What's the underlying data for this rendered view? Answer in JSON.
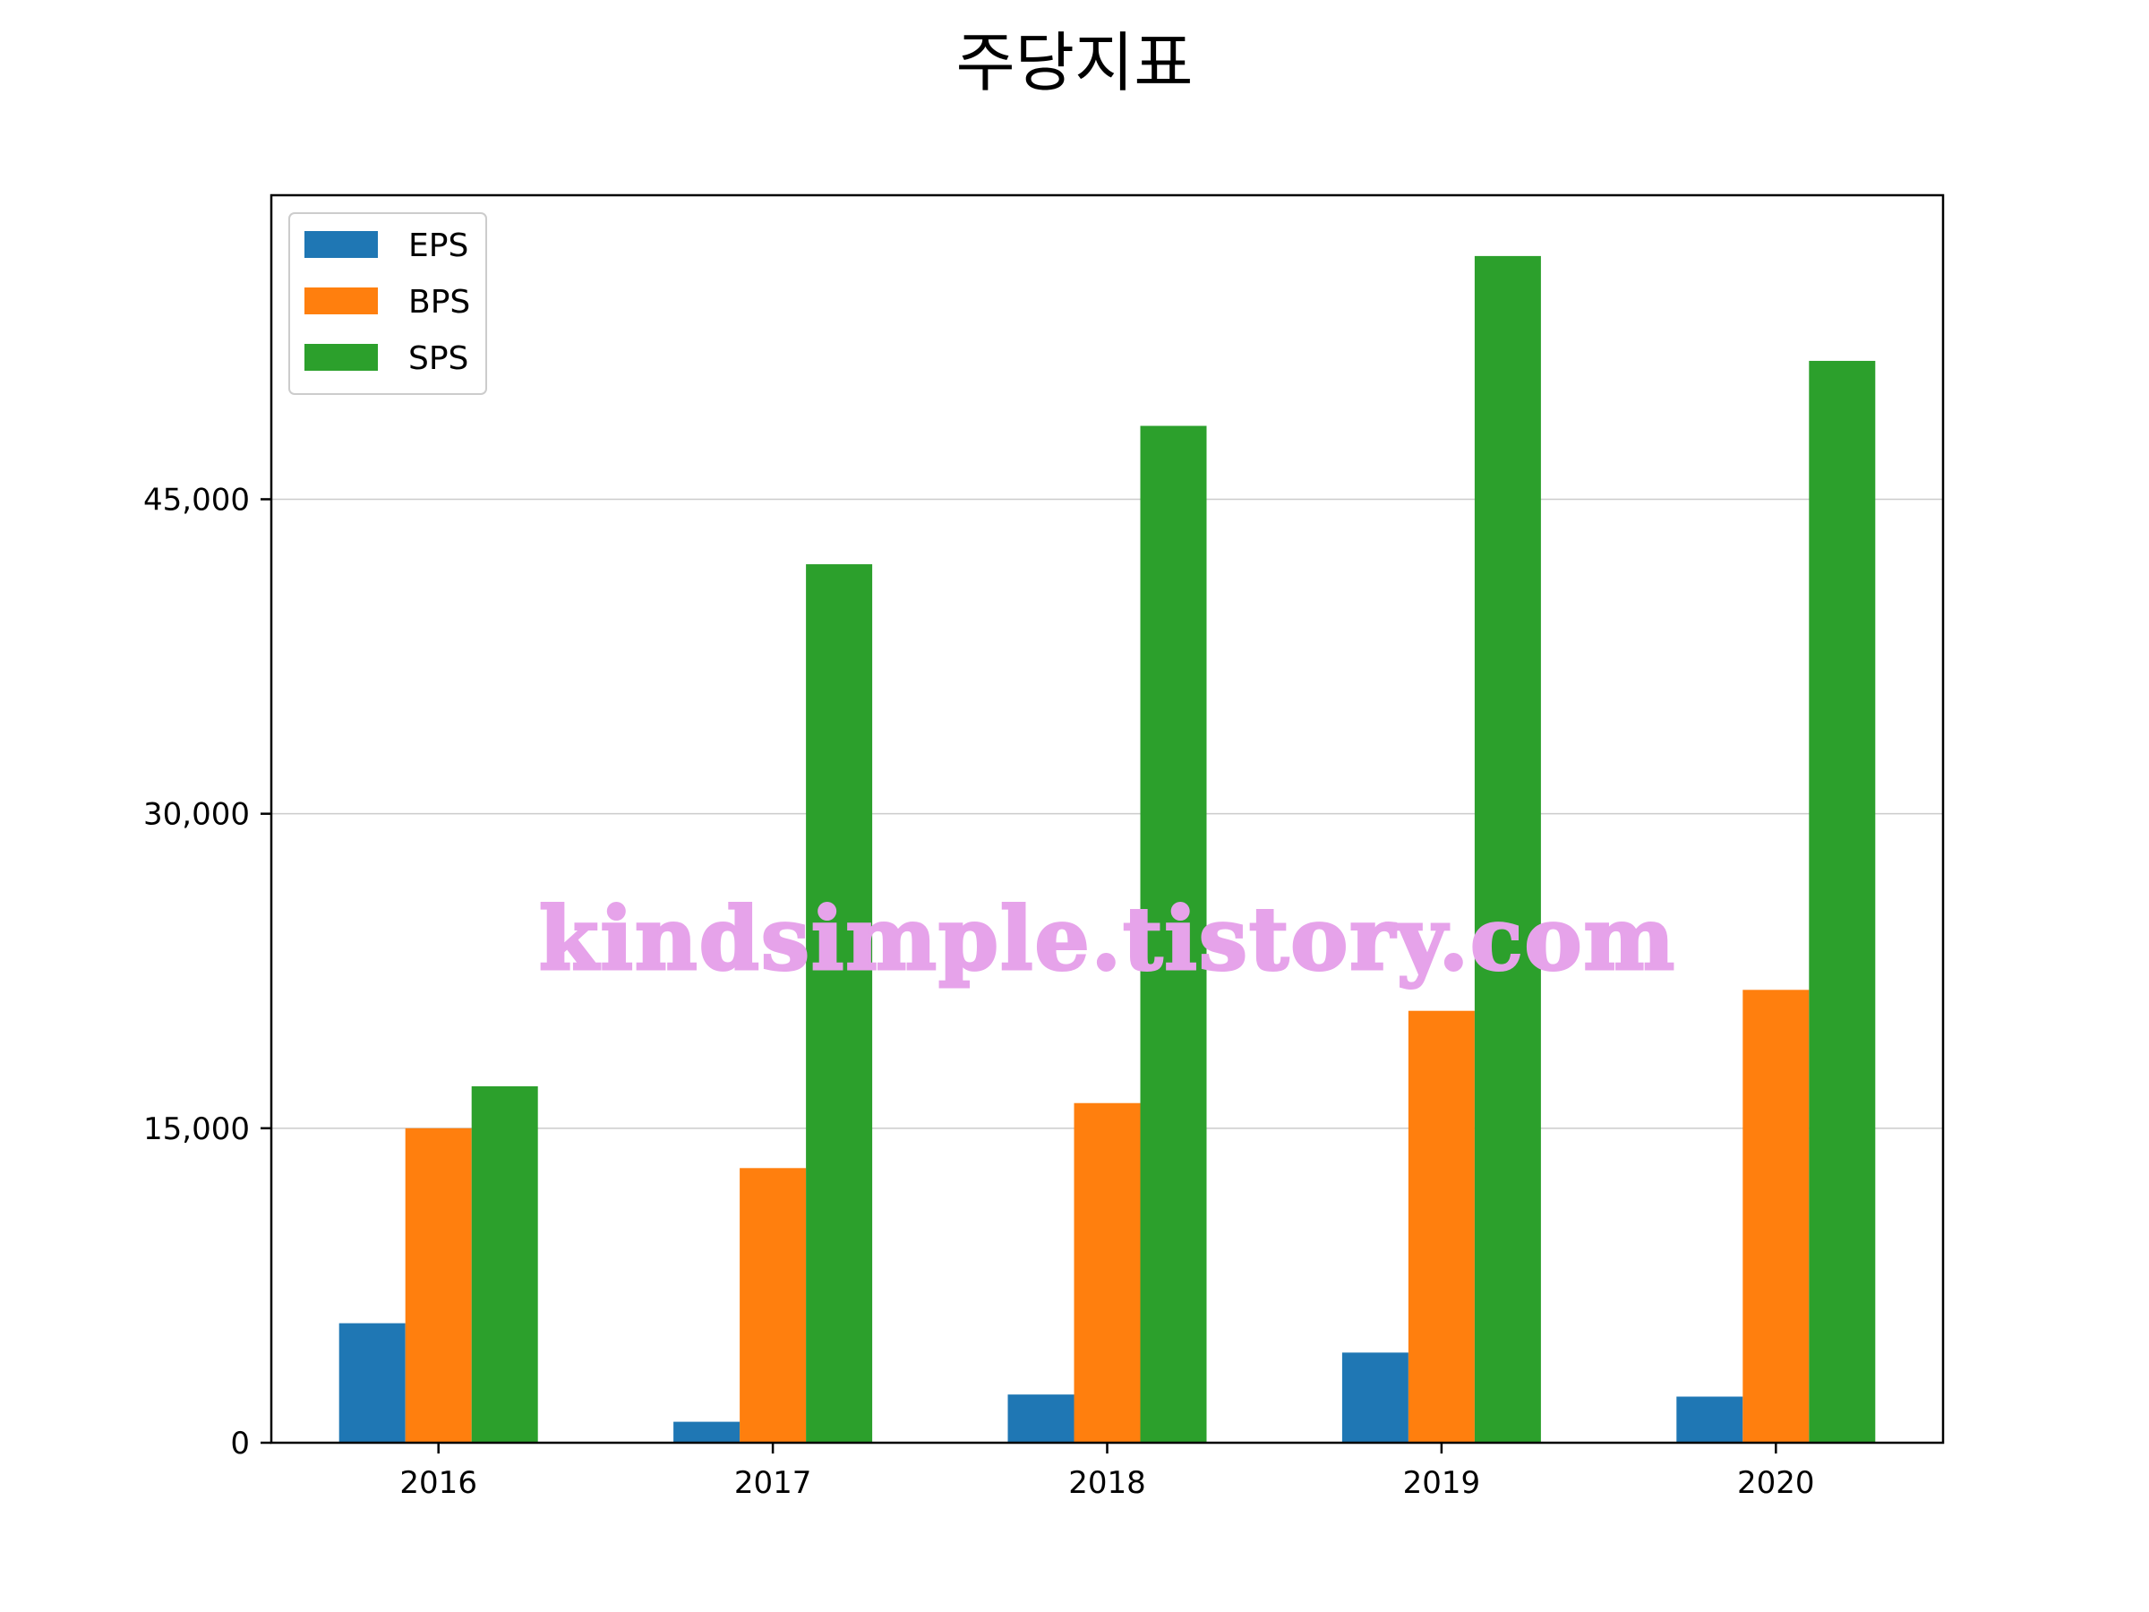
{
  "chart_data": {
    "type": "bar",
    "title": "주당지표",
    "xlabel": "",
    "ylabel": "",
    "categories": [
      "2016",
      "2017",
      "2018",
      "2019",
      "2020"
    ],
    "series": [
      {
        "name": "EPS",
        "color": "#1f77b4",
        "values": [
          5700,
          1000,
          2300,
          4300,
          2200
        ]
      },
      {
        "name": "BPS",
        "color": "#ff7f0e",
        "values": [
          15000,
          13100,
          16200,
          20600,
          21600
        ]
      },
      {
        "name": "SPS",
        "color": "#2ca02c",
        "values": [
          17000,
          41900,
          48500,
          56600,
          51600
        ]
      }
    ],
    "ylim": [
      0,
      59500
    ],
    "yticks": [
      0,
      15000,
      30000,
      45000
    ],
    "ytick_labels": [
      "0",
      "15,000",
      "30,000",
      "45,000"
    ],
    "grid": "y",
    "legend_position": "top-left"
  },
  "watermark": "kindsimple.tistory.com"
}
